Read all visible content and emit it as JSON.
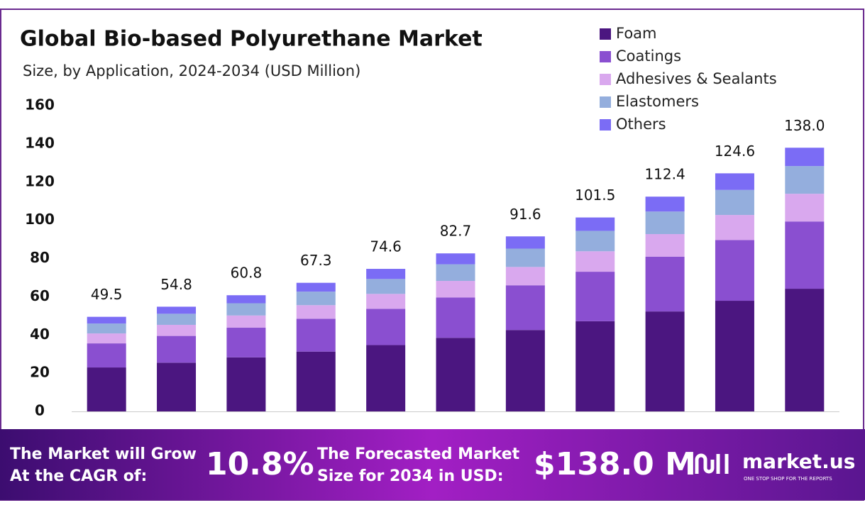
{
  "chart_data": {
    "type": "stacked-bar",
    "title": "Global Bio-based Polyurethane Market",
    "subtitle": "Size, by Application, 2024-2034 (USD Million)",
    "categories": [
      null,
      null,
      null,
      null,
      null,
      null,
      null,
      null,
      null,
      null,
      null
    ],
    "series": [
      {
        "name": "Foam",
        "color": "#4b1680",
        "values": [
          23.0,
          25.5,
          28.3,
          31.3,
          34.7,
          38.5,
          42.6,
          47.2,
          52.3,
          57.9,
          64.2
        ]
      },
      {
        "name": "Coatings",
        "color": "#8a4fd0",
        "values": [
          12.6,
          14.0,
          15.5,
          17.2,
          19.0,
          21.1,
          23.4,
          25.9,
          28.7,
          31.8,
          35.2
        ]
      },
      {
        "name": "Adhesives & Sealants",
        "color": "#d9a8ee",
        "values": [
          5.2,
          5.8,
          6.4,
          7.1,
          7.8,
          8.7,
          9.6,
          10.7,
          11.8,
          13.1,
          14.5
        ]
      },
      {
        "name": "Elastomers",
        "color": "#94aedd",
        "values": [
          5.2,
          5.8,
          6.4,
          7.1,
          7.8,
          8.7,
          9.6,
          10.7,
          11.8,
          13.1,
          14.5
        ]
      },
      {
        "name": "Others",
        "color": "#7b6cf5",
        "values": [
          3.5,
          3.7,
          4.2,
          4.6,
          5.3,
          5.7,
          6.4,
          7.0,
          7.8,
          8.7,
          9.6
        ]
      }
    ],
    "totals": [
      49.5,
      54.8,
      60.8,
      67.3,
      74.6,
      82.7,
      91.6,
      101.5,
      112.4,
      124.6,
      138.0
    ],
    "totals_labels": [
      "49.5",
      "54.8",
      "60.8",
      "67.3",
      "74.6",
      "82.7",
      "91.6",
      "101.5",
      "112.4",
      "124.6",
      "138.0"
    ],
    "ylim": [
      0,
      160
    ],
    "yticks": [
      0,
      20,
      40,
      60,
      80,
      100,
      120,
      140,
      160
    ],
    "grid": false,
    "legend": "top-right"
  },
  "footer": {
    "cagr_text": [
      "The Market will Grow",
      "At the CAGR of:"
    ],
    "cagr": "10.8%",
    "forecast_text": [
      "The Forecasted Market",
      "Size for 2034 in USD:"
    ],
    "forecast": "$138.0 M",
    "brand": "market.us",
    "tagline": "ONE STOP SHOP FOR THE REPORTS"
  }
}
